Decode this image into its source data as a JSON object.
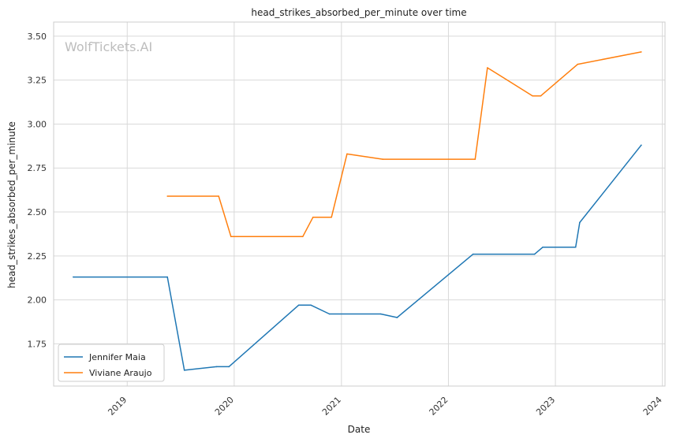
{
  "chart_data": {
    "type": "line",
    "title": "head_strikes_absorbed_per_minute over time",
    "xlabel": "Date",
    "ylabel": "head_strikes_absorbed_per_minute",
    "watermark": "WolfTickets.AI",
    "x_ticks": [
      "2019",
      "2020",
      "2021",
      "2022",
      "2023",
      "2024"
    ],
    "y_ticks": [
      "1.75",
      "2.00",
      "2.25",
      "2.50",
      "2.75",
      "3.00",
      "3.25",
      "3.50"
    ],
    "ylim": [
      1.51,
      3.58
    ],
    "xlim": [
      "2018-04-25",
      "2024-01-10"
    ],
    "grid": true,
    "legend_position": "lower-left",
    "series": [
      {
        "name": "Jennifer Maia",
        "color": "#1f77b4",
        "points": [
          {
            "x": "2018-07-01",
            "y": 2.13
          },
          {
            "x": "2019-05-18",
            "y": 2.13
          },
          {
            "x": "2019-07-15",
            "y": 1.6
          },
          {
            "x": "2019-11-02",
            "y": 1.62
          },
          {
            "x": "2019-12-14",
            "y": 1.62
          },
          {
            "x": "2020-08-08",
            "y": 1.97
          },
          {
            "x": "2020-09-19",
            "y": 1.97
          },
          {
            "x": "2020-11-21",
            "y": 1.92
          },
          {
            "x": "2021-05-15",
            "y": 1.92
          },
          {
            "x": "2021-07-10",
            "y": 1.9
          },
          {
            "x": "2022-03-26",
            "y": 2.26
          },
          {
            "x": "2022-10-22",
            "y": 2.26
          },
          {
            "x": "2022-11-19",
            "y": 2.3
          },
          {
            "x": "2023-03-11",
            "y": 2.3
          },
          {
            "x": "2023-03-25",
            "y": 2.44
          },
          {
            "x": "2023-10-21",
            "y": 2.88
          }
        ]
      },
      {
        "name": "Viviane Araujo",
        "color": "#ff7f0e",
        "points": [
          {
            "x": "2019-05-18",
            "y": 2.59
          },
          {
            "x": "2019-11-09",
            "y": 2.59
          },
          {
            "x": "2019-12-21",
            "y": 2.36
          },
          {
            "x": "2020-08-22",
            "y": 2.36
          },
          {
            "x": "2020-09-26",
            "y": 2.47
          },
          {
            "x": "2020-11-28",
            "y": 2.47
          },
          {
            "x": "2021-01-20",
            "y": 2.83
          },
          {
            "x": "2021-05-22",
            "y": 2.8
          },
          {
            "x": "2022-04-02",
            "y": 2.8
          },
          {
            "x": "2022-05-14",
            "y": 3.32
          },
          {
            "x": "2022-10-15",
            "y": 3.16
          },
          {
            "x": "2022-11-12",
            "y": 3.16
          },
          {
            "x": "2023-03-18",
            "y": 3.34
          },
          {
            "x": "2023-10-21",
            "y": 3.41
          }
        ]
      }
    ]
  }
}
